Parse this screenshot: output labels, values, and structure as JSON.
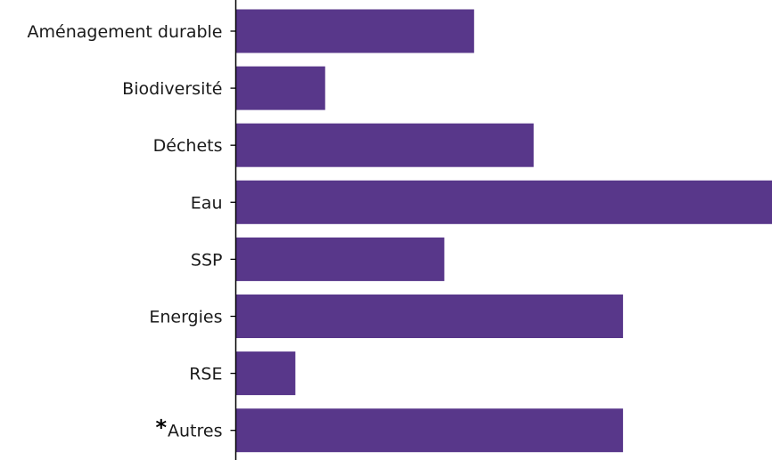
{
  "chart_data": {
    "type": "bar",
    "orientation": "horizontal",
    "categories": [
      "Aménagement durable",
      "Biodiversité",
      "Déchets",
      "Eau",
      "SSP",
      "Energies",
      "RSE",
      "Autres"
    ],
    "category_markers": [
      "",
      "",
      "",
      "",
      "",
      "",
      "",
      "*"
    ],
    "values": [
      8,
      3,
      10,
      18,
      7,
      13,
      2,
      13
    ],
    "xlim": [
      0,
      18
    ],
    "title": "",
    "xlabel": "",
    "ylabel": "",
    "grid": false,
    "legend": "none",
    "bar_color": "#58378a",
    "axis_color": "#000000",
    "label_color": "#1a1a1a"
  }
}
